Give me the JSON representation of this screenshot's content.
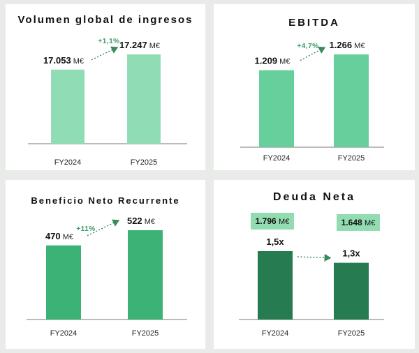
{
  "colors": {
    "ingresos_bar": "#90dcb4",
    "ebitda_bar": "#67cf9b",
    "beneficio_bar": "#3db276",
    "deuda_bar": "#267b51",
    "arrow": "#3a8a5c",
    "badge": "#93dcb2"
  },
  "chart_data": [
    {
      "type": "bar",
      "title": "Volumen global de ingresos",
      "categories": [
        "FY2024",
        "FY2025"
      ],
      "values": [
        17053,
        17247
      ],
      "value_labels": [
        "17.053",
        "17.247"
      ],
      "unit": "M€",
      "change_label": "+1,1%"
    },
    {
      "type": "bar",
      "title": "EBITDA",
      "categories": [
        "FY2024",
        "FY2025"
      ],
      "values": [
        1209,
        1266
      ],
      "value_labels": [
        "1.209",
        "1.266"
      ],
      "unit": "M€",
      "change_label": "+4,7%"
    },
    {
      "type": "bar",
      "title": "Beneficio Neto Recurrente",
      "categories": [
        "FY2024",
        "FY2025"
      ],
      "values": [
        470,
        522
      ],
      "value_labels": [
        "470",
        "522"
      ],
      "unit": "M€",
      "change_label": "+11%"
    },
    {
      "type": "bar",
      "title": "Deuda Neta",
      "categories": [
        "FY2024",
        "FY2025"
      ],
      "values": [
        1.5,
        1.3
      ],
      "value_labels": [
        "1,5x",
        "1,3x"
      ],
      "unit": "",
      "badges": [
        {
          "value": "1.796",
          "unit": "M€"
        },
        {
          "value": "1.648",
          "unit": "M€"
        }
      ]
    }
  ]
}
